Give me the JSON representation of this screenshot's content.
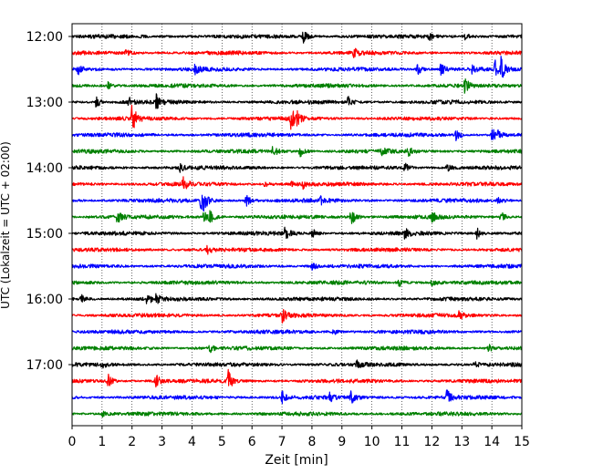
{
  "chart_data": {
    "type": "line",
    "xlabel": "Zeit  [min]",
    "ylabel": "UTC (Lokalzeit = UTC + 02:00)",
    "xlim": [
      0,
      15
    ],
    "x_ticks": [
      0,
      1,
      2,
      3,
      4,
      5,
      6,
      7,
      8,
      9,
      10,
      11,
      12,
      13,
      14,
      15
    ],
    "grid": "vertical-dotted",
    "y_tick_labels": [
      "12:00",
      "13:00",
      "14:00",
      "15:00",
      "16:00",
      "17:00"
    ],
    "y_tick_trace_index": [
      0,
      4,
      8,
      12,
      16,
      20
    ],
    "trace_colors": [
      "#000000",
      "#ff0000",
      "#0000ff",
      "#008000"
    ],
    "traces": [
      {
        "start": "12:00",
        "color": "#000000",
        "events": [
          [
            7.7,
            9
          ],
          [
            11.9,
            4
          ],
          [
            13.1,
            4
          ]
        ]
      },
      {
        "start": "12:15",
        "color": "#ff0000",
        "events": [
          [
            1.8,
            3
          ],
          [
            9.4,
            5
          ]
        ]
      },
      {
        "start": "12:30",
        "color": "#0000ff",
        "events": [
          [
            0.2,
            5
          ],
          [
            4.1,
            5
          ],
          [
            11.5,
            7
          ],
          [
            12.3,
            8
          ],
          [
            13.3,
            5
          ],
          [
            14.1,
            9
          ],
          [
            14.3,
            11
          ]
        ]
      },
      {
        "start": "12:45",
        "color": "#008000",
        "events": [
          [
            1.2,
            4
          ],
          [
            13.1,
            8
          ]
        ]
      },
      {
        "start": "13:00",
        "color": "#000000",
        "events": [
          [
            0.8,
            6
          ],
          [
            1.9,
            5
          ],
          [
            2.8,
            8
          ],
          [
            9.2,
            6
          ]
        ]
      },
      {
        "start": "13:15",
        "color": "#ff0000",
        "events": [
          [
            2.0,
            16
          ],
          [
            7.3,
            12
          ],
          [
            7.5,
            5
          ]
        ]
      },
      {
        "start": "13:30",
        "color": "#0000ff",
        "events": [
          [
            12.8,
            7
          ],
          [
            14.0,
            9
          ],
          [
            14.2,
            5
          ]
        ]
      },
      {
        "start": "13:45",
        "color": "#008000",
        "events": [
          [
            6.7,
            6
          ],
          [
            7.6,
            6
          ],
          [
            10.3,
            6
          ],
          [
            11.2,
            6
          ]
        ]
      },
      {
        "start": "14:00",
        "color": "#000000",
        "events": [
          [
            3.6,
            4
          ],
          [
            11.1,
            5
          ],
          [
            12.5,
            5
          ]
        ]
      },
      {
        "start": "14:15",
        "color": "#ff0000",
        "events": [
          [
            3.7,
            8
          ],
          [
            6.4,
            4
          ],
          [
            7.3,
            4
          ],
          [
            7.7,
            4
          ]
        ]
      },
      {
        "start": "14:30",
        "color": "#0000ff",
        "events": [
          [
            4.3,
            10
          ],
          [
            4.4,
            8
          ],
          [
            5.8,
            7
          ],
          [
            8.3,
            4
          ],
          [
            14.2,
            5
          ]
        ]
      },
      {
        "start": "14:45",
        "color": "#008000",
        "events": [
          [
            1.5,
            9
          ],
          [
            4.4,
            9
          ],
          [
            4.6,
            7
          ],
          [
            9.3,
            11
          ],
          [
            12.0,
            6
          ],
          [
            14.3,
            6
          ]
        ]
      },
      {
        "start": "15:00",
        "color": "#000000",
        "events": [
          [
            7.1,
            7
          ],
          [
            8.0,
            5
          ],
          [
            11.1,
            6
          ],
          [
            13.5,
            6
          ]
        ]
      },
      {
        "start": "15:15",
        "color": "#ff0000",
        "events": [
          [
            4.5,
            5
          ]
        ]
      },
      {
        "start": "15:30",
        "color": "#0000ff",
        "events": [
          [
            8.0,
            4
          ]
        ]
      },
      {
        "start": "15:45",
        "color": "#008000",
        "events": [
          [
            10.9,
            5
          ],
          [
            12.0,
            6
          ]
        ]
      },
      {
        "start": "16:00",
        "color": "#000000",
        "events": [
          [
            0.3,
            5
          ],
          [
            2.5,
            6
          ],
          [
            2.8,
            5
          ]
        ]
      },
      {
        "start": "16:15",
        "color": "#ff0000",
        "events": [
          [
            7.0,
            7
          ],
          [
            12.9,
            4
          ]
        ]
      },
      {
        "start": "16:30",
        "color": "#0000ff",
        "events": [
          [
            8.7,
            4
          ]
        ]
      },
      {
        "start": "16:45",
        "color": "#008000",
        "events": [
          [
            4.6,
            4
          ],
          [
            13.9,
            4
          ]
        ]
      },
      {
        "start": "17:00",
        "color": "#000000",
        "events": [
          [
            1.0,
            3
          ],
          [
            9.5,
            4
          ],
          [
            13.4,
            4
          ]
        ]
      },
      {
        "start": "17:15",
        "color": "#ff0000",
        "events": [
          [
            1.2,
            7
          ],
          [
            2.8,
            7
          ],
          [
            5.2,
            12
          ]
        ]
      },
      {
        "start": "17:30",
        "color": "#0000ff",
        "events": [
          [
            7.0,
            7
          ],
          [
            8.6,
            6
          ],
          [
            9.3,
            8
          ],
          [
            12.5,
            9
          ]
        ]
      },
      {
        "start": "17:45",
        "color": "#008000",
        "events": [
          [
            1.0,
            3
          ]
        ]
      }
    ]
  }
}
